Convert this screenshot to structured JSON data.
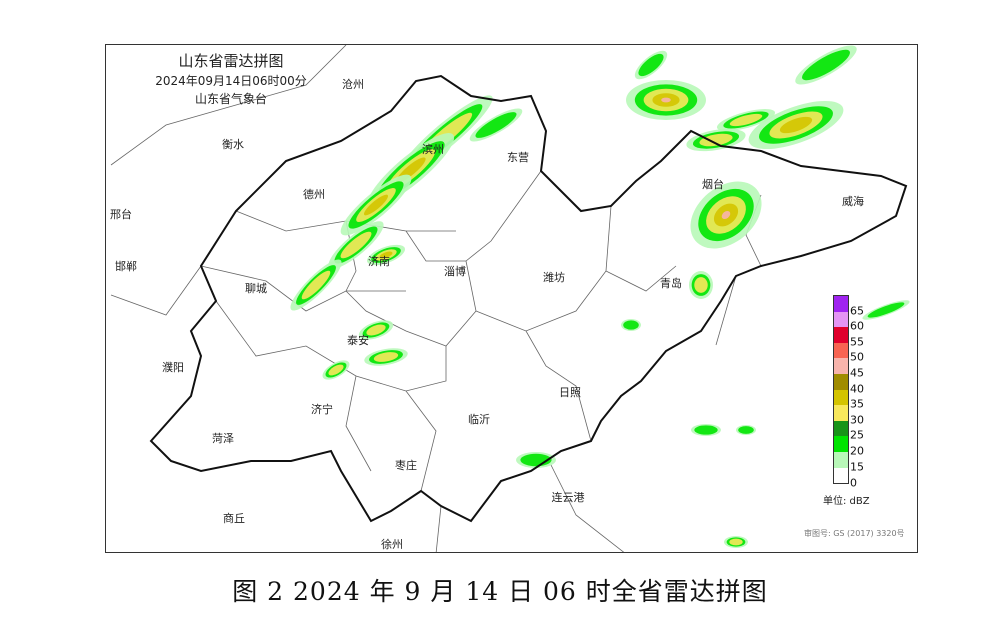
{
  "map": {
    "title": "山东省雷达拼图",
    "time": "2024年09月14日06时00分",
    "agency": "山东省气象台",
    "cities": [
      {
        "name": "沧州"
      },
      {
        "name": "衡水"
      },
      {
        "name": "德州"
      },
      {
        "name": "滨州"
      },
      {
        "name": "东营"
      },
      {
        "name": "邢台"
      },
      {
        "name": "邯郸"
      },
      {
        "name": "聊城"
      },
      {
        "name": "济南"
      },
      {
        "name": "淄博"
      },
      {
        "name": "潍坊"
      },
      {
        "name": "青岛"
      },
      {
        "name": "烟台"
      },
      {
        "name": "威海"
      },
      {
        "name": "濮阳"
      },
      {
        "name": "泰安"
      },
      {
        "name": "济宁"
      },
      {
        "name": "临沂"
      },
      {
        "name": "日照"
      },
      {
        "name": "菏泽"
      },
      {
        "name": "枣庄"
      },
      {
        "name": "连云港"
      },
      {
        "name": "商丘"
      },
      {
        "name": "徐州"
      }
    ],
    "legend": {
      "unit": "单位: dBZ",
      "labels": [
        "65",
        "60",
        "55",
        "50",
        "45",
        "40",
        "35",
        "30",
        "25",
        "20",
        "15",
        "0"
      ],
      "colors": [
        "#a024f0",
        "#e494f4",
        "#e0002c",
        "#f86452",
        "#f8b4ac",
        "#a08c00",
        "#d4c400",
        "#f8e85c",
        "#189418",
        "#00e400",
        "#b8f8b8",
        "#ffffff"
      ]
    },
    "approval_number": "审图号: GS (2017) 3320号"
  },
  "caption": "图 2 2024 年 9 月 14 日 06 时全省雷达拼图"
}
